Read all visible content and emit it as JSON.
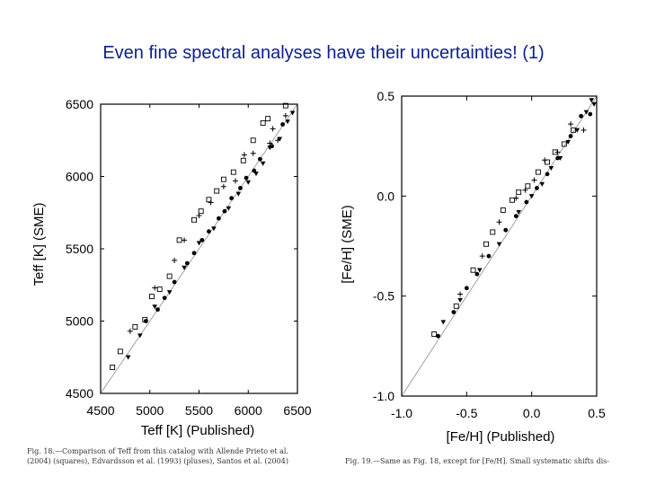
{
  "slide": {
    "title": "Even fine spectral analyses have their uncertainties!  (1)",
    "caption_left_1": "Fig. 18.—Comparison of Teff from this catalog with Allende Prieto et al.",
    "caption_left_2": "(2004) (squares), Edvardsson et al. (1993) (pluses), Santos et al. (2004)",
    "caption_right": "Fig. 19.—Same as Fig. 18, except for [Fe/H]. Small systematic shifts dis-"
  },
  "chart_data": [
    {
      "type": "scatter",
      "id": "teff",
      "xlabel": "Teff [K] (Published)",
      "ylabel": "Teff [K] (SME)",
      "xlim": [
        4500,
        6500
      ],
      "ylim": [
        4500,
        6500
      ],
      "xticks": [
        "4500",
        "5000",
        "5500",
        "6000",
        "6500"
      ],
      "yticks": [
        "4500",
        "5000",
        "5500",
        "6000",
        "6500"
      ],
      "reference_line": "y = x",
      "series": [
        {
          "name": "squares",
          "marker": "square",
          "points": [
            [
              4620,
              4680
            ],
            [
              4700,
              4790
            ],
            [
              4850,
              4960
            ],
            [
              4950,
              5010
            ],
            [
              5020,
              5170
            ],
            [
              5100,
              5220
            ],
            [
              5200,
              5310
            ],
            [
              5300,
              5560
            ],
            [
              5450,
              5700
            ],
            [
              5520,
              5760
            ],
            [
              5600,
              5840
            ],
            [
              5680,
              5900
            ],
            [
              5750,
              5980
            ],
            [
              5850,
              6030
            ],
            [
              5950,
              6110
            ],
            [
              6050,
              6250
            ],
            [
              6150,
              6370
            ],
            [
              6200,
              6400
            ],
            [
              6380,
              6490
            ]
          ]
        },
        {
          "name": "pluses",
          "marker": "plus",
          "points": [
            [
              4800,
              4930
            ],
            [
              5050,
              5230
            ],
            [
              5250,
              5420
            ],
            [
              5350,
              5560
            ],
            [
              5500,
              5730
            ],
            [
              5620,
              5820
            ],
            [
              5750,
              5930
            ],
            [
              5870,
              5970
            ],
            [
              5960,
              6150
            ],
            [
              6050,
              6160
            ],
            [
              6220,
              6230
            ],
            [
              6300,
              6250
            ],
            [
              6380,
              6420
            ],
            [
              6250,
              6330
            ]
          ]
        },
        {
          "name": "triangles",
          "marker": "triangle",
          "points": [
            [
              4780,
              4750
            ],
            [
              4900,
              4900
            ],
            [
              5050,
              5100
            ],
            [
              5200,
              5200
            ],
            [
              5350,
              5370
            ],
            [
              5500,
              5540
            ],
            [
              5650,
              5640
            ],
            [
              5800,
              5780
            ],
            [
              5900,
              5880
            ],
            [
              6000,
              5960
            ],
            [
              6080,
              6020
            ],
            [
              6150,
              6090
            ],
            [
              6220,
              6200
            ],
            [
              6320,
              6260
            ],
            [
              6400,
              6380
            ],
            [
              6450,
              6440
            ]
          ]
        },
        {
          "name": "circles",
          "marker": "circle",
          "points": [
            [
              4960,
              5000
            ],
            [
              5080,
              5080
            ],
            [
              5150,
              5160
            ],
            [
              5250,
              5270
            ],
            [
              5380,
              5400
            ],
            [
              5450,
              5470
            ],
            [
              5530,
              5560
            ],
            [
              5600,
              5620
            ],
            [
              5700,
              5710
            ],
            [
              5760,
              5760
            ],
            [
              5830,
              5850
            ],
            [
              5920,
              5920
            ],
            [
              5980,
              5990
            ],
            [
              6060,
              6040
            ],
            [
              6120,
              6120
            ],
            [
              6240,
              6210
            ],
            [
              6350,
              6360
            ]
          ]
        }
      ]
    },
    {
      "type": "scatter",
      "id": "feh",
      "xlabel": "[Fe/H] (Published)",
      "ylabel": "[Fe/H] (SME)",
      "xlim": [
        -1.0,
        0.5
      ],
      "ylim": [
        -1.0,
        0.5
      ],
      "xticks": [
        "-1.0",
        "-0.5",
        "0.0",
        "0.5"
      ],
      "yticks": [
        "-1.0",
        "-0.5",
        "0.0",
        "0.5"
      ],
      "reference_line": "y = x",
      "series": [
        {
          "name": "squares",
          "marker": "square",
          "points": [
            [
              -0.75,
              -0.69
            ],
            [
              -0.58,
              -0.55
            ],
            [
              -0.45,
              -0.37
            ],
            [
              -0.35,
              -0.24
            ],
            [
              -0.3,
              -0.18
            ],
            [
              -0.22,
              -0.07
            ],
            [
              -0.15,
              -0.02
            ],
            [
              -0.1,
              0.02
            ],
            [
              -0.03,
              0.05
            ],
            [
              0.05,
              0.12
            ],
            [
              0.12,
              0.17
            ],
            [
              0.18,
              0.22
            ],
            [
              0.25,
              0.26
            ],
            [
              0.32,
              0.33
            ]
          ]
        },
        {
          "name": "pluses",
          "marker": "plus",
          "points": [
            [
              -0.55,
              -0.49
            ],
            [
              -0.38,
              -0.3
            ],
            [
              -0.25,
              -0.13
            ],
            [
              -0.12,
              -0.01
            ],
            [
              -0.05,
              0.03
            ],
            [
              0.02,
              0.08
            ],
            [
              0.1,
              0.18
            ],
            [
              0.2,
              0.22
            ],
            [
              0.3,
              0.36
            ],
            [
              0.4,
              0.33
            ]
          ]
        },
        {
          "name": "triangles",
          "marker": "triangle",
          "points": [
            [
              -0.68,
              -0.63
            ],
            [
              -0.55,
              -0.52
            ],
            [
              -0.4,
              -0.37
            ],
            [
              -0.25,
              -0.24
            ],
            [
              -0.1,
              -0.08
            ],
            [
              0.0,
              0.0
            ],
            [
              0.08,
              0.06
            ],
            [
              0.15,
              0.14
            ],
            [
              0.22,
              0.19
            ],
            [
              0.28,
              0.27
            ],
            [
              0.35,
              0.33
            ],
            [
              0.42,
              0.42
            ],
            [
              0.48,
              0.46
            ],
            [
              0.46,
              0.48
            ]
          ]
        },
        {
          "name": "circles",
          "marker": "circle",
          "points": [
            [
              -0.72,
              -0.7
            ],
            [
              -0.6,
              -0.58
            ],
            [
              -0.5,
              -0.46
            ],
            [
              -0.42,
              -0.39
            ],
            [
              -0.33,
              -0.3
            ],
            [
              -0.2,
              -0.17
            ],
            [
              -0.12,
              -0.1
            ],
            [
              -0.04,
              -0.03
            ],
            [
              0.04,
              0.04
            ],
            [
              0.12,
              0.11
            ],
            [
              0.2,
              0.19
            ],
            [
              0.3,
              0.3
            ],
            [
              0.38,
              0.4
            ],
            [
              0.45,
              0.41
            ]
          ]
        }
      ]
    }
  ]
}
